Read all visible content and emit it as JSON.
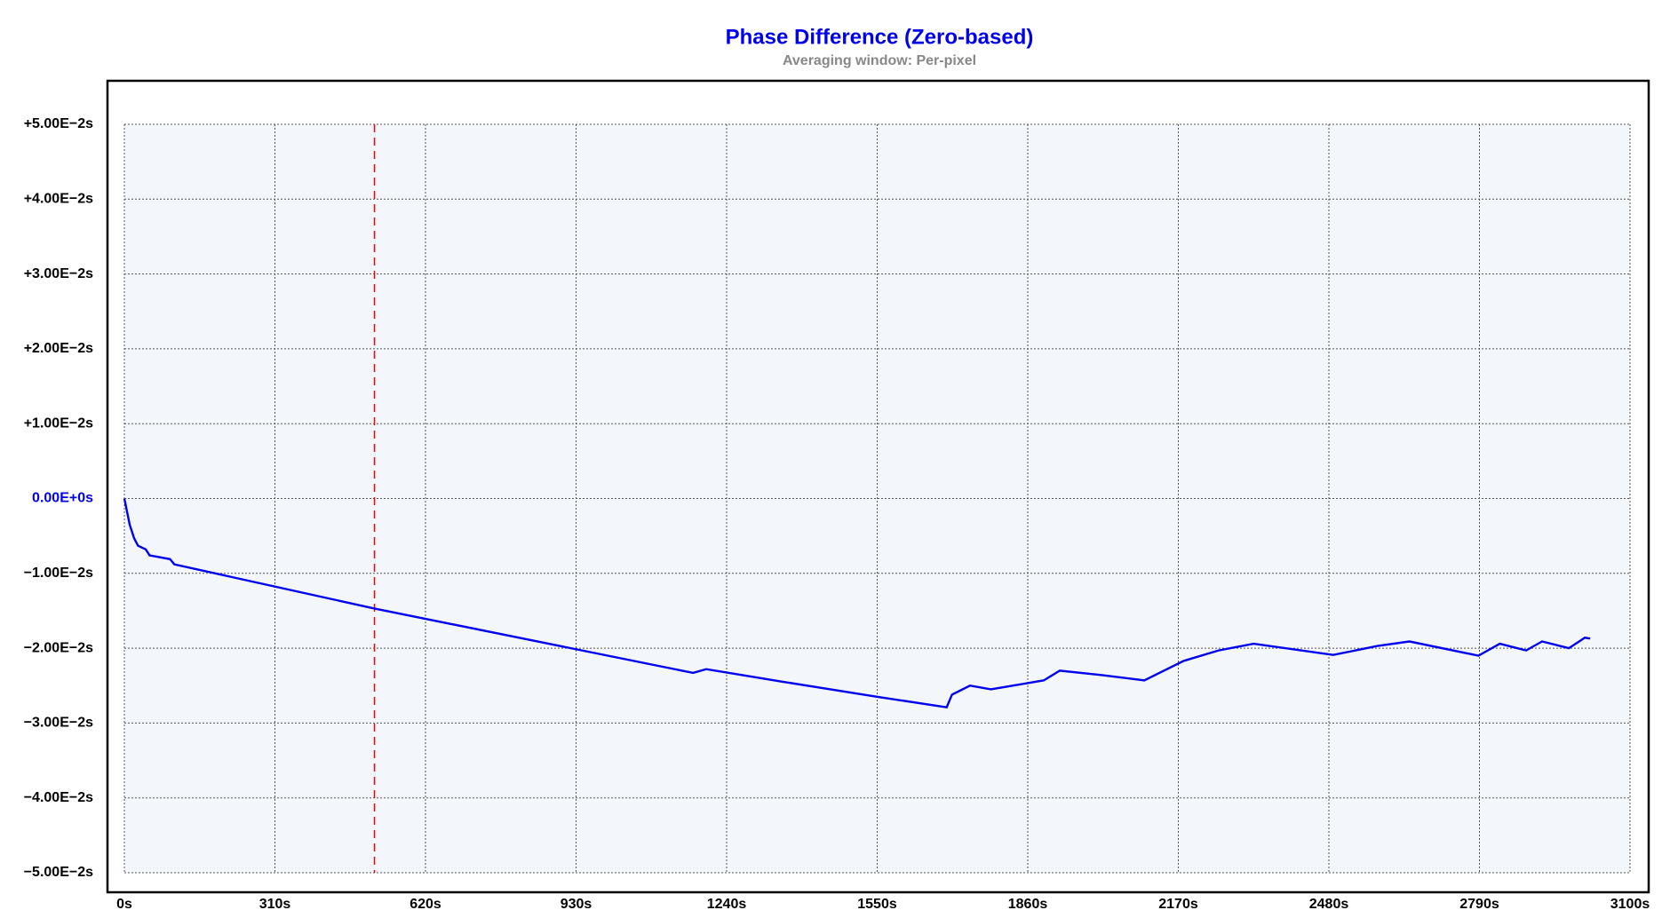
{
  "chart_data": {
    "type": "line",
    "title": "Phase Difference (Zero-based)",
    "subtitle": "Averaging window: Per-pixel",
    "title_color": "#0000ee",
    "zero_label_color": "#0000ee",
    "grid": true,
    "xlim": [
      0,
      3100
    ],
    "ylim": [
      -0.05,
      0.05
    ],
    "xticks": [
      {
        "value": 0,
        "label": "0s"
      },
      {
        "value": 310,
        "label": "310s"
      },
      {
        "value": 620,
        "label": "620s"
      },
      {
        "value": 930,
        "label": "930s"
      },
      {
        "value": 1240,
        "label": "1240s"
      },
      {
        "value": 1550,
        "label": "1550s"
      },
      {
        "value": 1860,
        "label": "1860s"
      },
      {
        "value": 2170,
        "label": "2170s"
      },
      {
        "value": 2480,
        "label": "2480s"
      },
      {
        "value": 2790,
        "label": "2790s"
      },
      {
        "value": 3100,
        "label": "3100s"
      }
    ],
    "yticks": [
      {
        "value": 0.05,
        "label": "+5.00E−2s"
      },
      {
        "value": 0.04,
        "label": "+4.00E−2s"
      },
      {
        "value": 0.03,
        "label": "+3.00E−2s"
      },
      {
        "value": 0.02,
        "label": "+2.00E−2s"
      },
      {
        "value": 0.01,
        "label": "+1.00E−2s"
      },
      {
        "value": 0,
        "label": "0.00E+0s"
      },
      {
        "value": -0.01,
        "label": "−1.00E−2s"
      },
      {
        "value": -0.02,
        "label": "−2.00E−2s"
      },
      {
        "value": -0.03,
        "label": "−3.00E−2s"
      },
      {
        "value": -0.04,
        "label": "−4.00E−2s"
      },
      {
        "value": -0.05,
        "label": "−5.00E−2s"
      }
    ],
    "cursor_x": 515,
    "cursor_color": "#ff0000",
    "series": [
      {
        "color": "#0000ee",
        "x": [
          0,
          11,
          20,
          28,
          44,
          52,
          94,
          103,
          515,
          1171,
          1198,
          1357,
          1551,
          1693,
          1704,
          1741,
          1784,
          1893,
          1926,
          2013,
          2100,
          2181,
          2253,
          2325,
          2489,
          2580,
          2646,
          2788,
          2832,
          2886,
          2919,
          2974,
          3007,
          3018
        ],
        "values": [
          0,
          -0.0035,
          -0.0053,
          -0.0063,
          -0.0068,
          -0.0076,
          -0.0081,
          -0.0088,
          -0.0147,
          -0.0233,
          -0.0228,
          -0.0245,
          -0.0265,
          -0.0279,
          -0.0262,
          -0.025,
          -0.0255,
          -0.0243,
          -0.023,
          -0.0236,
          -0.0243,
          -0.0217,
          -0.0203,
          -0.0194,
          -0.0209,
          -0.0197,
          -0.0191,
          -0.021,
          -0.0194,
          -0.0203,
          -0.0191,
          -0.02,
          -0.0186,
          -0.0187
        ]
      }
    ]
  }
}
